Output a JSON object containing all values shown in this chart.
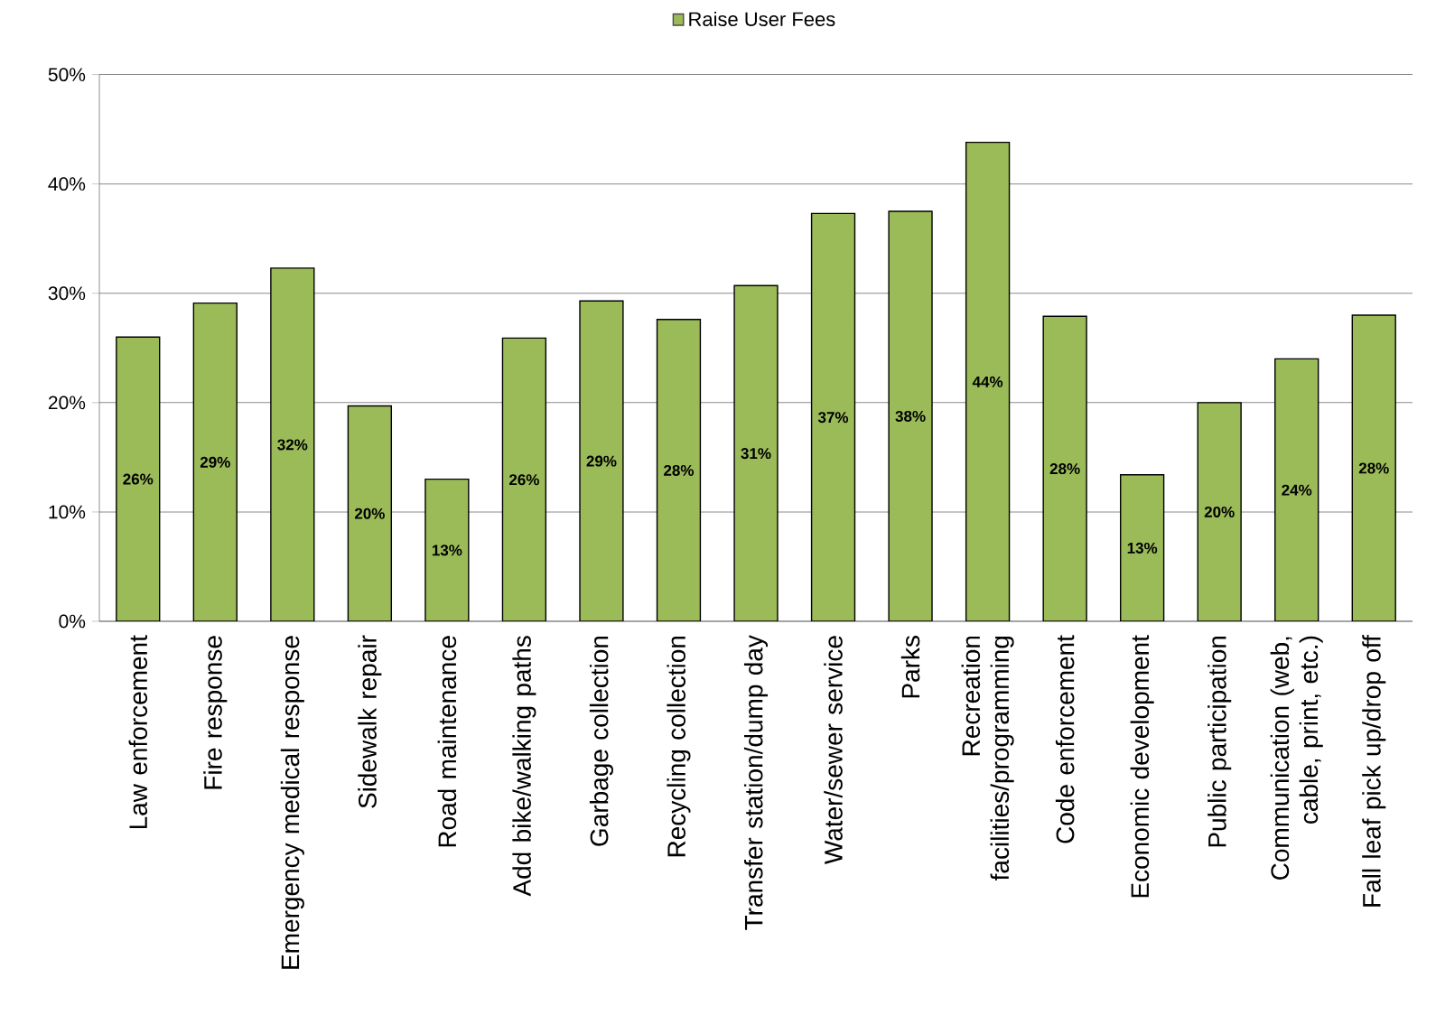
{
  "chart_data": {
    "type": "bar",
    "categories": [
      "Law enforcement",
      "Fire response",
      "Emergency medical response",
      "Sidewalk repair",
      "Road maintenance",
      "Add bike/walking paths",
      "Garbage collection",
      "Recycling collection",
      "Transfer station/dump day",
      "Water/sewer service",
      "Parks",
      "Recreation facilities/programming",
      "Code enforcement",
      "Economic development",
      "Public participation",
      "Communication (web, cable, print, etc.)",
      "Fall leaf pick up/drop off"
    ],
    "series": [
      {
        "name": "Raise User Fees",
        "color": "#9bbb59",
        "values": [
          26.0,
          29.1,
          32.3,
          19.7,
          13.0,
          25.9,
          29.3,
          27.6,
          30.7,
          37.3,
          37.5,
          43.8,
          27.9,
          13.4,
          20.0,
          24.0,
          28.0
        ],
        "value_labels": [
          "26%",
          "29%",
          "32%",
          "20%",
          "13%",
          "26%",
          "29%",
          "28%",
          "31%",
          "37%",
          "38%",
          "44%",
          "28%",
          "13%",
          "20%",
          "24%",
          "28%"
        ]
      }
    ],
    "ylim": [
      0,
      50
    ],
    "yticks": [
      {
        "value": 0,
        "label": "0%"
      },
      {
        "value": 10,
        "label": "10%"
      },
      {
        "value": 20,
        "label": "20%"
      },
      {
        "value": 30,
        "label": "30%"
      },
      {
        "value": 40,
        "label": "40%"
      },
      {
        "value": 50,
        "label": "50%"
      }
    ],
    "grid": "y",
    "legend": "top"
  }
}
